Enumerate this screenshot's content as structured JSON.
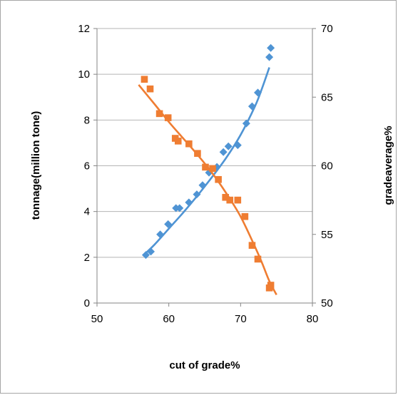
{
  "chart_data": {
    "type": "scatter",
    "xlabel": "cut of grade%",
    "ylabel": "tonnage(million tone)",
    "y2label": "gradeaverage%",
    "xlim": [
      50,
      80
    ],
    "ylim": [
      0,
      12
    ],
    "y2lim": [
      50,
      70
    ],
    "xticks": [
      "50",
      "60",
      "70",
      "80"
    ],
    "yticks": [
      "0",
      "2",
      "4",
      "6",
      "8",
      "10",
      "12"
    ],
    "y2ticks": [
      "50",
      "55",
      "60",
      "65",
      "70"
    ],
    "grid": "horizontal",
    "legend": "none",
    "series": [
      {
        "axis": "left",
        "marker": "diamond",
        "color": "#4f94d4",
        "x": [
          56.8,
          57.5,
          58.8,
          59.9,
          61.0,
          61.5,
          62.8,
          63.9,
          64.7,
          65.6,
          66.7,
          67.6,
          68.3,
          69.6,
          70.8,
          71.6,
          72.4,
          74.0,
          74.2
        ],
        "y": [
          2.1,
          2.25,
          3.0,
          3.45,
          4.15,
          4.15,
          4.4,
          4.75,
          5.15,
          5.7,
          5.95,
          6.6,
          6.85,
          6.9,
          7.85,
          8.6,
          9.2,
          10.75,
          11.15
        ],
        "trend": {
          "x": [
            56.5,
            58,
            60,
            62,
            64,
            66,
            68,
            70,
            72,
            73,
            74
          ],
          "y": [
            2.1,
            2.55,
            3.25,
            3.95,
            4.7,
            5.5,
            6.35,
            7.35,
            8.6,
            9.4,
            10.3
          ]
        }
      },
      {
        "axis": "right",
        "marker": "square",
        "color": "#ef7d32",
        "x": [
          56.6,
          57.4,
          58.7,
          59.9,
          60.9,
          61.3,
          62.8,
          64.0,
          65.1,
          66.1,
          66.9,
          67.9,
          68.5,
          69.6,
          70.6,
          71.6,
          72.4,
          74.0,
          74.2
        ],
        "y": [
          66.3,
          65.6,
          63.8,
          63.5,
          62.0,
          61.8,
          61.6,
          60.9,
          59.9,
          59.8,
          59.0,
          57.7,
          57.5,
          57.5,
          56.3,
          54.2,
          53.2,
          51.1,
          51.3
        ],
        "trend": {
          "x": [
            55.8,
            58,
            60,
            62,
            64,
            66,
            68,
            70,
            72,
            73,
            74,
            75
          ],
          "y": [
            65.9,
            64.5,
            63.2,
            62.0,
            60.8,
            59.5,
            58.0,
            56.3,
            54.1,
            52.9,
            51.6,
            50.6
          ]
        }
      }
    ]
  }
}
